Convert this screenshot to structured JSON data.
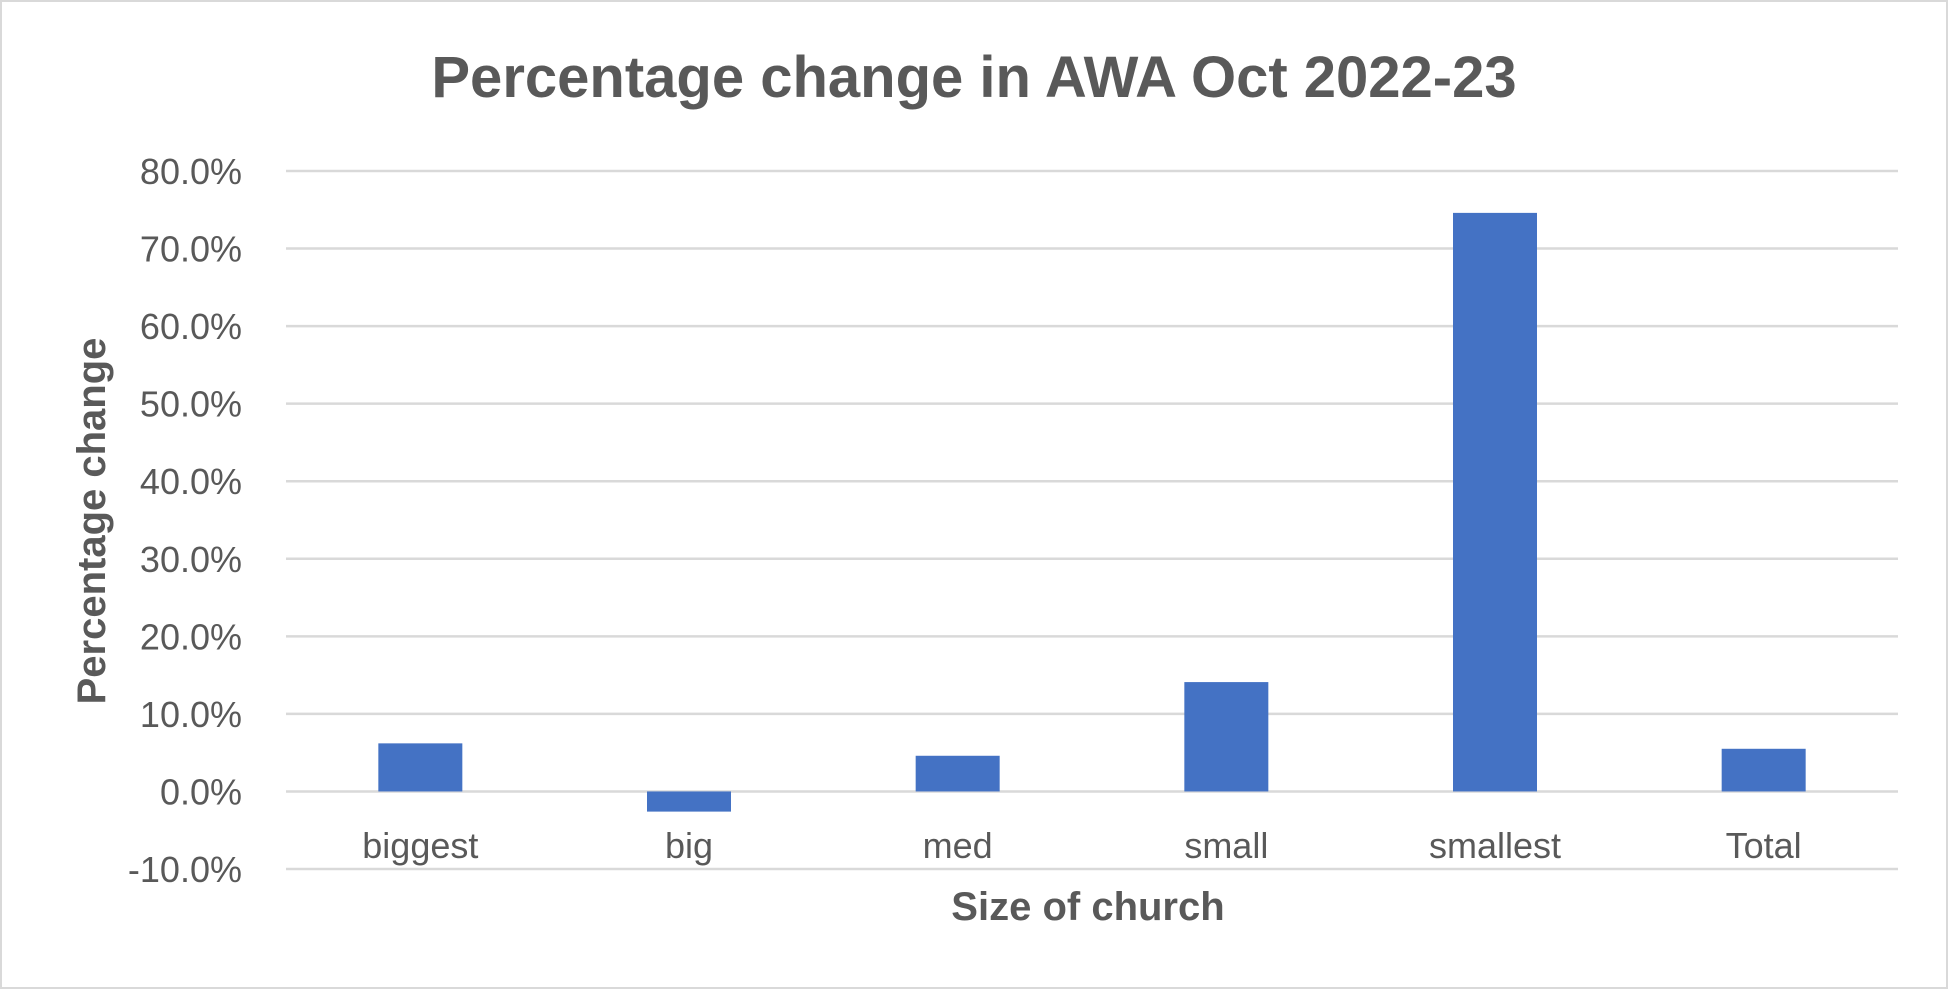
{
  "chart_data": {
    "type": "bar",
    "title": "Percentage change in AWA Oct 2022-23",
    "xlabel": "Size of church",
    "ylabel": "Percentage change",
    "categories": [
      "biggest",
      "big",
      "med",
      "small",
      "smallest",
      "Total"
    ],
    "values": [
      6.2,
      -2.6,
      4.6,
      14.1,
      74.6,
      5.5
    ],
    "ylim": [
      -10,
      80
    ],
    "ytick_step": 10,
    "ytick_labels": [
      "-10.0%",
      "0.0%",
      "10.0%",
      "20.0%",
      "30.0%",
      "40.0%",
      "50.0%",
      "60.0%",
      "70.0%",
      "80.0%"
    ],
    "grid": true,
    "legend": "none",
    "bar_color": "#4472c4"
  }
}
